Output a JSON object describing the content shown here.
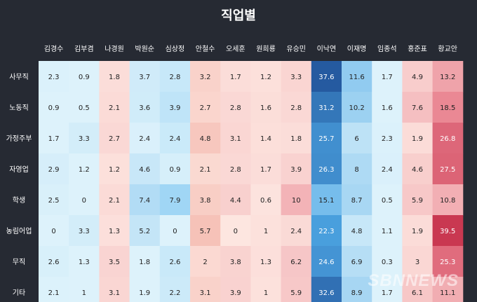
{
  "chart_data": {
    "type": "heatmap",
    "title": "직업별",
    "columns": [
      "김경수",
      "김부겸",
      "나경원",
      "박원순",
      "심상정",
      "안철수",
      "오세훈",
      "원희룡",
      "유승민",
      "이낙연",
      "이재명",
      "임종석",
      "홍준표",
      "황교안"
    ],
    "rows": [
      "사무직",
      "노동직",
      "가정주부",
      "자영업",
      "학생",
      "농림어업",
      "무직",
      "기타"
    ],
    "values": [
      [
        2.3,
        0.9,
        1.8,
        3.7,
        2.8,
        3.2,
        1.7,
        1.2,
        3.3,
        37.6,
        11.6,
        1.7,
        4.9,
        13.2
      ],
      [
        0.9,
        0.5,
        2.1,
        3.6,
        3.9,
        2.7,
        2.8,
        1.6,
        2.8,
        31.2,
        10.2,
        1.6,
        7.6,
        18.5
      ],
      [
        1.7,
        3.3,
        2.7,
        2.4,
        2.4,
        4.8,
        3.1,
        1.4,
        1.8,
        25.7,
        6,
        2.3,
        1.9,
        26.8
      ],
      [
        2.9,
        1.2,
        1.2,
        4.6,
        0.9,
        2.1,
        2.8,
        1.7,
        3.9,
        26.3,
        8,
        2.4,
        4.6,
        27.5
      ],
      [
        2.5,
        0,
        2.1,
        7.4,
        7.9,
        3.8,
        4.4,
        0.6,
        10,
        15.1,
        8.7,
        0.5,
        5.9,
        10.8
      ],
      [
        0,
        3.3,
        1.3,
        5.2,
        0,
        5.7,
        0,
        1,
        2.4,
        22.3,
        4.8,
        1.1,
        1.9,
        39.5
      ],
      [
        2.6,
        1.3,
        3.5,
        1.8,
        2.6,
        2,
        3.8,
        1.3,
        6.2,
        24.6,
        6.9,
        0.3,
        3,
        25.3
      ],
      [
        2.1,
        1,
        3.1,
        1.9,
        2.2,
        3.1,
        3.9,
        1,
        5.9,
        32.6,
        8.9,
        1.7,
        6.1,
        11.1
      ]
    ],
    "party_colors": [
      "blue",
      "blue",
      "red",
      "blue",
      "yellow",
      "orange",
      "red",
      "red",
      "red",
      "blue",
      "blue",
      "blue",
      "red",
      "red"
    ],
    "palette": {
      "blue_light": "#ddf2fb",
      "blue_mid": "#4fa9e6",
      "blue_dark": "#1f4f96",
      "red_light": "#fde6e0",
      "red_mid": "#e8808e",
      "red_dark": "#c8364f",
      "neutral_light": "#ddf2fb"
    }
  },
  "watermark": "SBNNEWS"
}
